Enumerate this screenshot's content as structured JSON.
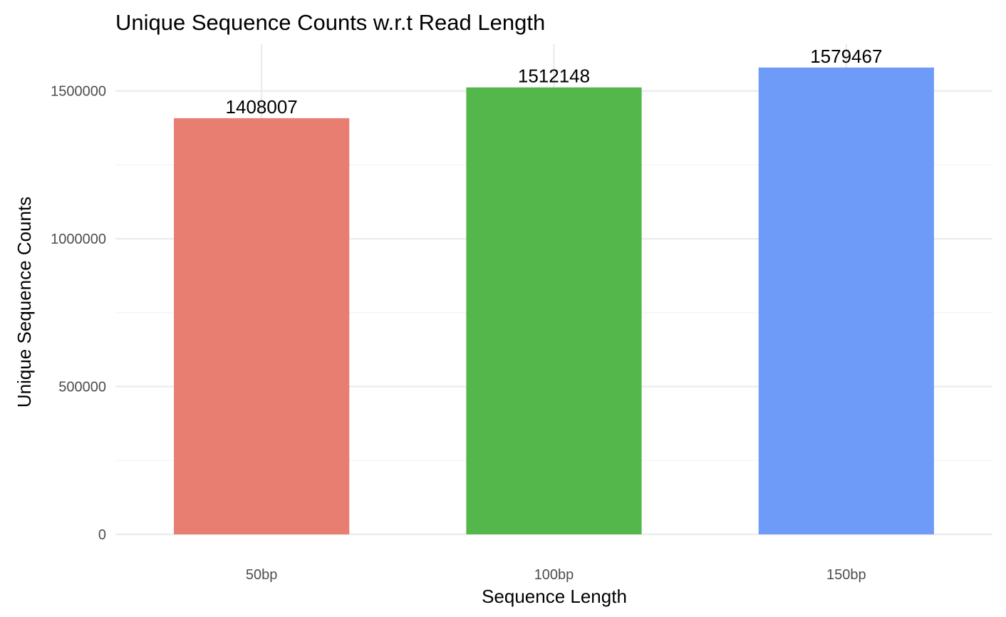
{
  "chart_data": {
    "type": "bar",
    "title": "Unique Sequence Counts w.r.t Read Length",
    "xlabel": "Sequence Length",
    "ylabel": "Unique Sequence Counts",
    "categories": [
      "50bp",
      "100bp",
      "150bp"
    ],
    "values": [
      1408007,
      1512148,
      1579467
    ],
    "data_labels": [
      "1408007",
      "1512148",
      "1579467"
    ],
    "colors": [
      "#E87D72",
      "#53B74C",
      "#6F9BF8"
    ],
    "yticks": [
      0,
      500000,
      1000000,
      1500000
    ],
    "ytick_labels": [
      "0",
      "500000",
      "1000000",
      "1500000"
    ],
    "ylim": [
      0,
      1658440
    ],
    "grid": true,
    "legend": "none"
  }
}
